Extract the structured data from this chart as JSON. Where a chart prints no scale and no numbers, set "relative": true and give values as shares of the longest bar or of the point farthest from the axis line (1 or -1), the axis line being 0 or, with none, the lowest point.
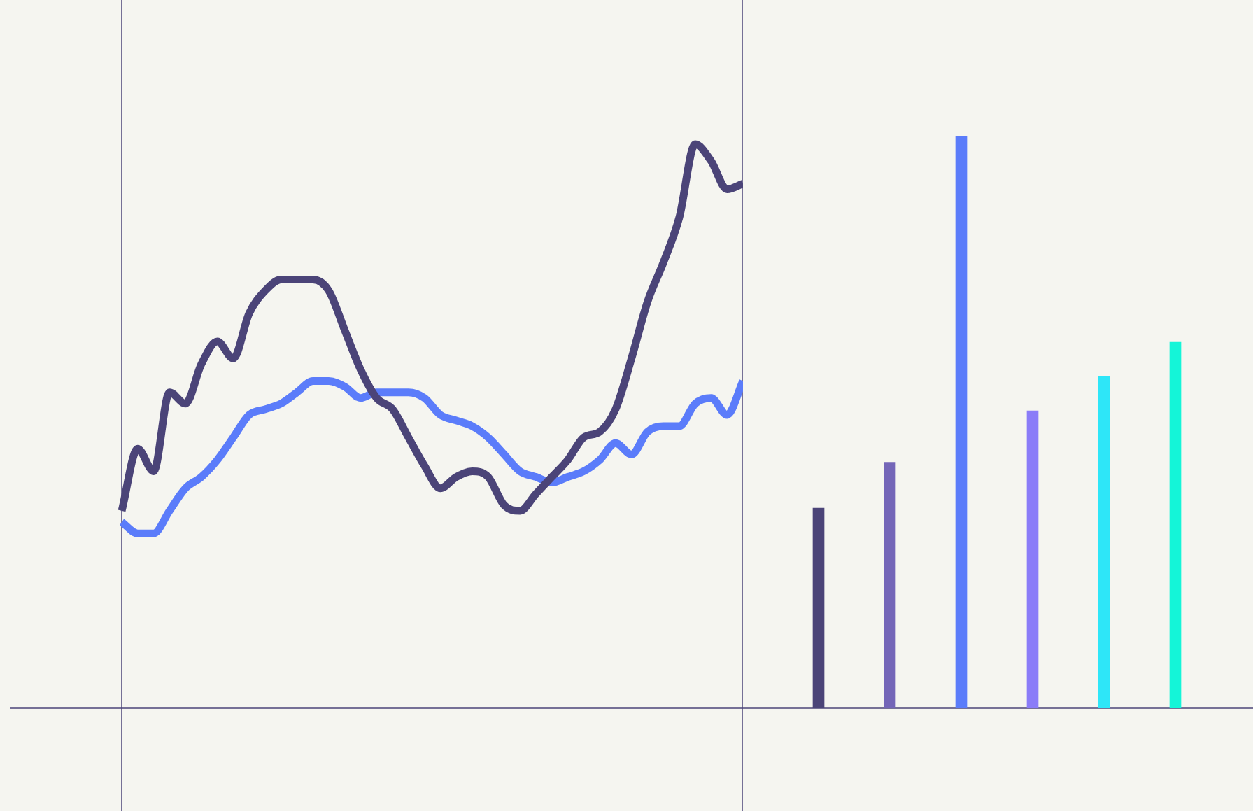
{
  "chart_data": [
    {
      "type": "line",
      "relative": true,
      "categories": [
        null,
        null,
        null,
        null,
        null,
        null,
        null,
        null,
        null,
        null,
        null,
        null,
        null,
        null,
        null,
        null,
        null,
        null,
        null,
        null,
        null,
        null,
        null,
        null,
        null,
        null,
        null,
        null,
        null,
        null,
        null,
        null,
        null,
        null,
        null,
        null,
        null,
        null,
        null,
        null
      ],
      "series": [
        {
          "color": "#4b4478",
          "values": [
            0.35,
            0.46,
            0.42,
            0.56,
            0.54,
            0.61,
            0.65,
            0.62,
            0.7,
            0.74,
            0.76,
            0.76,
            0.76,
            0.74,
            0.67,
            0.6,
            0.55,
            0.53,
            0.48,
            0.43,
            0.39,
            0.41,
            0.42,
            0.41,
            0.36,
            0.35,
            0.38,
            0.41,
            0.44,
            0.48,
            0.49,
            0.53,
            0.62,
            0.72,
            0.79,
            0.87,
            1,
            0.97,
            0.92,
            0.93
          ]
        },
        {
          "color": "#5b7cfa",
          "values": [
            0.33,
            0.31,
            0.31,
            0.35,
            0.39,
            0.41,
            0.44,
            0.48,
            0.52,
            0.53,
            0.54,
            0.56,
            0.58,
            0.58,
            0.57,
            0.55,
            0.56,
            0.56,
            0.56,
            0.55,
            0.52,
            0.51,
            0.5,
            0.48,
            0.45,
            0.42,
            0.41,
            0.4,
            0.41,
            0.42,
            0.44,
            0.47,
            0.45,
            0.49,
            0.5,
            0.5,
            0.54,
            0.55,
            0.52,
            0.58
          ]
        }
      ]
    },
    {
      "type": "bar",
      "relative": true,
      "categories": [
        null,
        null,
        null,
        null,
        null,
        null
      ],
      "values": [
        0.35,
        0.43,
        1,
        0.52,
        0.58,
        0.64
      ],
      "colors": [
        "#4b4478",
        "#7466b8",
        "#5b7cfa",
        "#8a7cf8",
        "#2ee6f8",
        "#14f5d8"
      ]
    }
  ]
}
